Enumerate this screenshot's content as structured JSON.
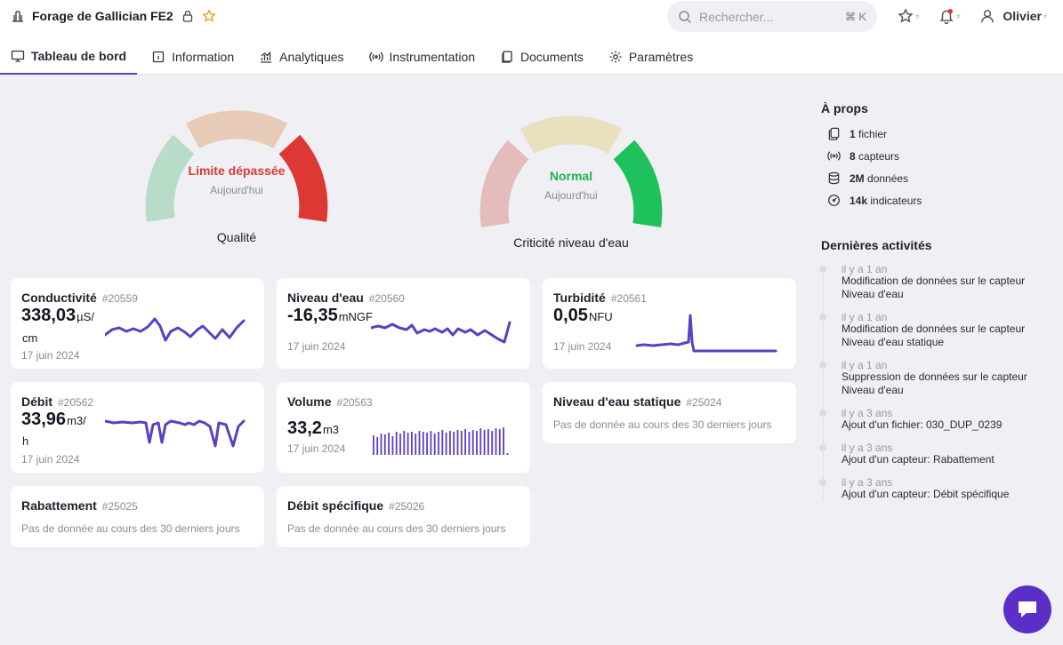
{
  "header": {
    "site_title": "Forage de Gallician FE2",
    "search_placeholder": "Rechercher...",
    "search_shortcut": "⌘ K",
    "user_name": "Olivier"
  },
  "tabs": [
    {
      "label": "Tableau de bord",
      "icon": "monitor-icon",
      "active": true
    },
    {
      "label": "Information",
      "icon": "info-icon"
    },
    {
      "label": "Analytiques",
      "icon": "analytics-icon"
    },
    {
      "label": "Instrumentation",
      "icon": "broadcast-icon"
    },
    {
      "label": "Documents",
      "icon": "documents-icon"
    },
    {
      "label": "Paramètres",
      "icon": "gear-icon"
    }
  ],
  "gauges": [
    {
      "label": "Qualité",
      "status": "Limite dépassée",
      "status_color": "#d93a35",
      "date": "Aujourd'hui",
      "segment_active": 3,
      "segment_colors": [
        "#b8dcc8",
        "#e8cbb6",
        "#de3834"
      ]
    },
    {
      "label": "Criticité niveau d'eau",
      "status": "Normal",
      "status_color": "#20b454",
      "date": "Aujourd'hui",
      "segment_active": 3,
      "segment_colors": [
        "#e5bcbc",
        "#e9e1bd",
        "#1ec15b"
      ]
    }
  ],
  "cards": {
    "conductivite": {
      "title": "Conductivité",
      "id": "#20559",
      "value": "338,03",
      "unit": "µS/",
      "unit2": "cm",
      "date": "17 juin 2024"
    },
    "niveau": {
      "title": "Niveau d'eau",
      "id": "#20560",
      "value": "-16,35",
      "unit": "mNGF",
      "date": "17 juin 2024"
    },
    "turbidite": {
      "title": "Turbidité",
      "id": "#20561",
      "value": "0,05",
      "unit": "NFU",
      "date": "17 juin 2024"
    },
    "debit": {
      "title": "Débit",
      "id": "#20562",
      "value": "33,96",
      "unit": "m3/",
      "unit2": "h",
      "date": "17 juin 2024"
    },
    "volume": {
      "title": "Volume",
      "id": "#20563",
      "value": "33,2",
      "unit": "m3",
      "date": "17 juin 2024"
    },
    "niveau_statique": {
      "title": "Niveau d'eau statique",
      "id": "#25024",
      "empty": "Pas de donnée au cours des 30 derniers jours"
    },
    "rabattement": {
      "title": "Rabattement",
      "id": "#25025",
      "empty": "Pas de donnée au cours des 30 derniers jours"
    },
    "debit_specifique": {
      "title": "Débit spécifique",
      "id": "#25026",
      "empty": "Pas de donnée au cours des 30 derniers jours"
    }
  },
  "about": {
    "title": "À props",
    "items": [
      {
        "count": "1",
        "label": "fichier",
        "icon": "files-icon"
      },
      {
        "count": "8",
        "label": "capteurs",
        "icon": "broadcast-icon"
      },
      {
        "count": "2M",
        "label": "données",
        "icon": "database-icon"
      },
      {
        "count": "14k",
        "label": "indicateurs",
        "icon": "gauge-icon"
      }
    ]
  },
  "activities": {
    "title": "Dernières activités",
    "items": [
      {
        "time": "il y a 1 an",
        "desc": "Modification de données sur le capteur Niveau d'eau"
      },
      {
        "time": "il y a 1 an",
        "desc": "Modification de données sur le capteur Niveau d'eau statique"
      },
      {
        "time": "il y a 1 an",
        "desc": "Suppression de données sur le capteur Niveau d'eau"
      },
      {
        "time": "il y a 3 ans",
        "desc": "Ajout d'un fichier: 030_DUP_0239"
      },
      {
        "time": "il y a 3 ans",
        "desc": "Ajout d'un capteur: Rabattement"
      },
      {
        "time": "il y a 3 ans",
        "desc": "Ajout d'un capteur: Débit spécifique"
      }
    ]
  },
  "colors": {
    "accent": "#5b2ec7",
    "spark": "#5b3fc4"
  }
}
